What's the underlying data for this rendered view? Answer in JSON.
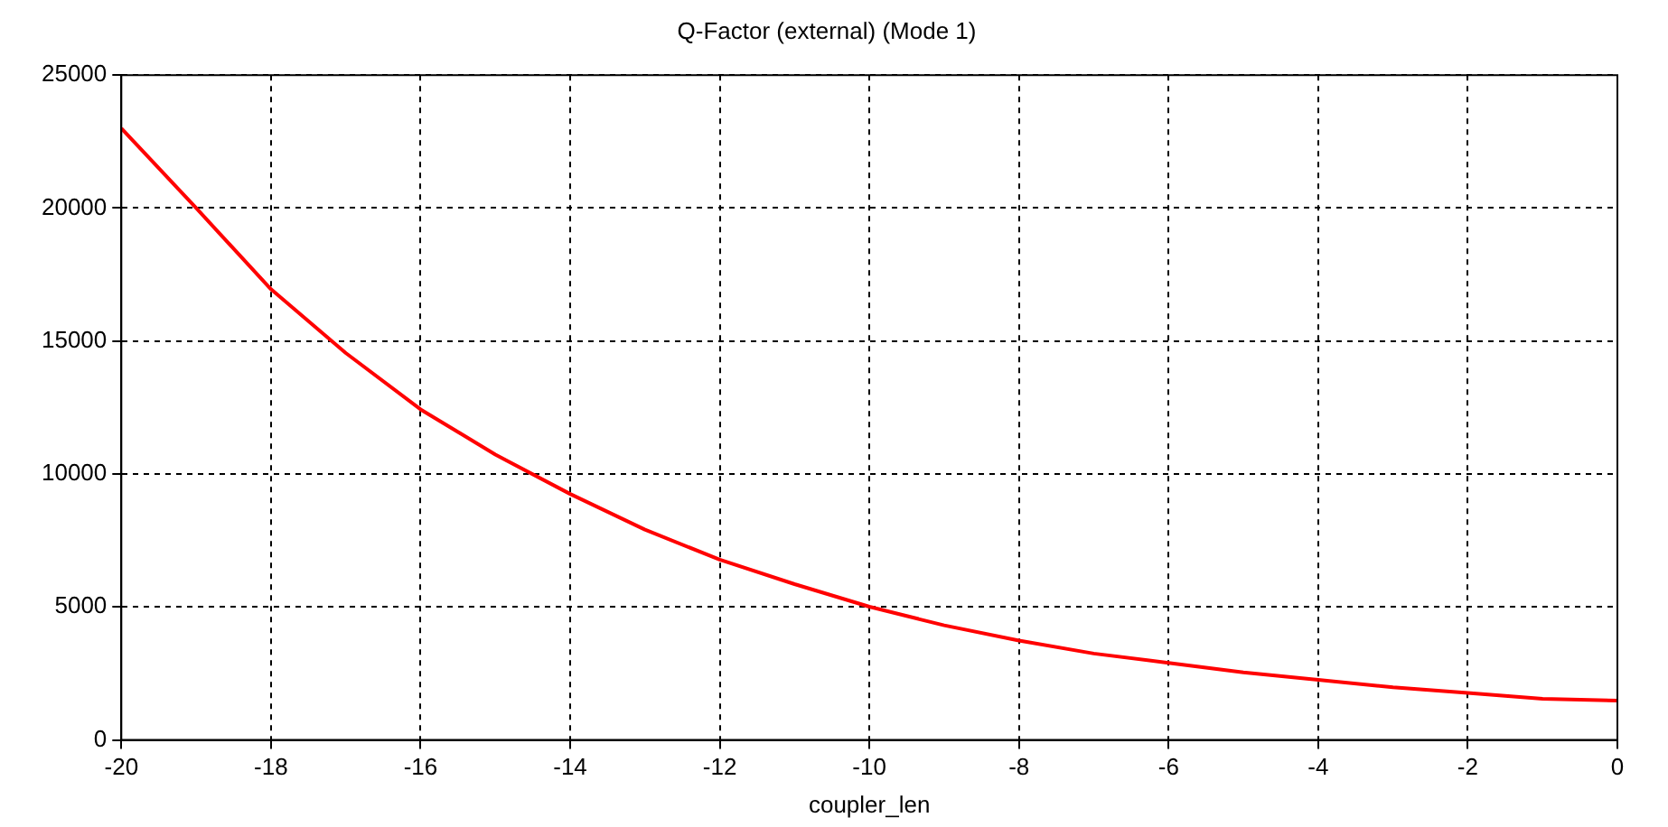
{
  "chart_data": {
    "type": "line",
    "title": "Q-Factor (external) (Mode 1)",
    "xlabel": "coupler_len",
    "x": [
      -20,
      -19,
      -18,
      -17,
      -16,
      -15,
      -14,
      -13,
      -12,
      -11,
      -10,
      -9,
      -8,
      -7,
      -6,
      -5,
      -4,
      -3,
      -2,
      -1,
      0
    ],
    "series": [
      {
        "color": "#ff0000",
        "values": [
          23000,
          20000,
          16950,
          14550,
          12430,
          10730,
          9250,
          7910,
          6780,
          5860,
          5010,
          4310,
          3740,
          3250,
          2900,
          2540,
          2260,
          1980,
          1770,
          1550,
          1480
        ]
      }
    ],
    "xlim": [
      -20,
      0
    ],
    "xticks": [
      -20,
      -18,
      -16,
      -14,
      -12,
      -10,
      -8,
      -6,
      -4,
      -2,
      0
    ],
    "ylim": [
      0,
      25000
    ],
    "yticks": [
      0,
      5000,
      10000,
      15000,
      20000,
      25000
    ],
    "grid": true,
    "legend": false,
    "marker": "none",
    "line_style": "solid"
  }
}
